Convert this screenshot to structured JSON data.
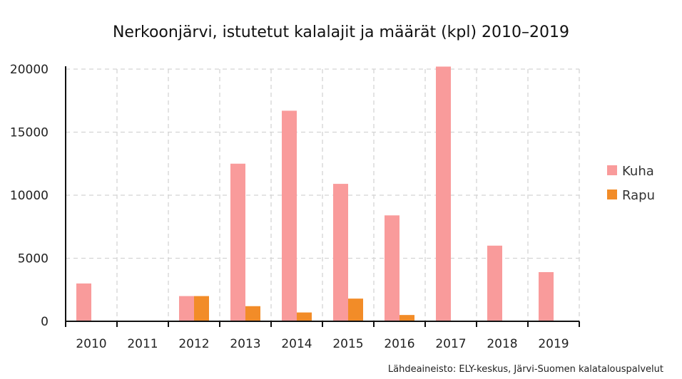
{
  "chart_data": {
    "type": "bar",
    "title": "Nerkoonjärvi, istutetut kalalajit ja määrät (kpl) 2010–2019",
    "xlabel": "",
    "ylabel": "",
    "categories": [
      "2010",
      "2011",
      "2012",
      "2013",
      "2014",
      "2015",
      "2016",
      "2017",
      "2018",
      "2019"
    ],
    "series": [
      {
        "name": "Kuha",
        "color": "#f99b9b",
        "values": [
          3000,
          0,
          2000,
          12500,
          16700,
          10900,
          8400,
          20200,
          6000,
          3900
        ]
      },
      {
        "name": "Rapu",
        "color": "#f28c28",
        "values": [
          0,
          0,
          2000,
          1200,
          700,
          1800,
          500,
          0,
          0,
          0
        ]
      }
    ],
    "ylim": [
      0,
      20000
    ],
    "yticks": [
      0,
      5000,
      10000,
      15000,
      20000
    ],
    "grid": true,
    "legend_position": "right",
    "source": "Lähdeaineisto: ELY-keskus, Järvi-Suomen kalatalouspalvelut"
  }
}
